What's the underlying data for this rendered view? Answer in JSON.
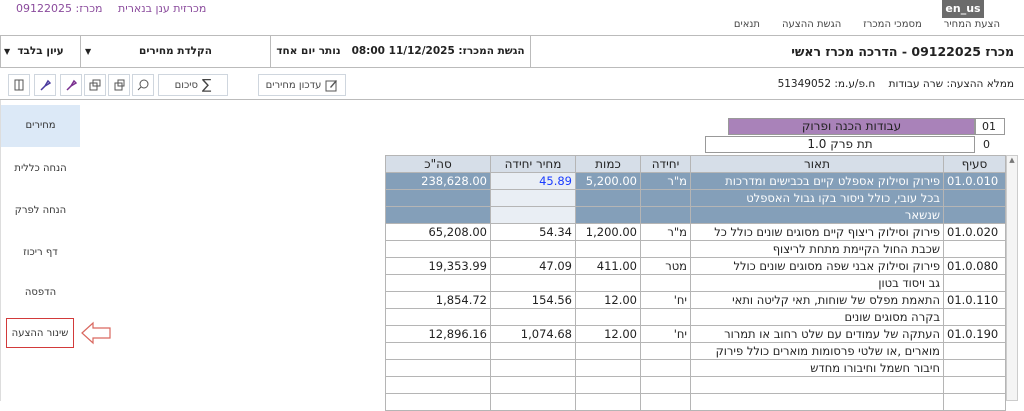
{
  "top_bar": {
    "app_name": "מכרזית ענן בנארית",
    "tender_label": "מכרז: 09122025",
    "language": "en_us"
  },
  "tabs": [
    "הצעת המחיר",
    "מסמכי המכרז",
    "הגשת ההצעה",
    "תנאים"
  ],
  "header": {
    "title": "מכרז 09122025 - הדרכה מכרז ראשי",
    "deadline": "הגשת המכרז: 11/12/2025 08:00",
    "remaining": "נותר יום אחד",
    "mode": "הקלדת מחירים",
    "view": "עיון בלבד"
  },
  "toolbar": {
    "filler": "ממלא ההצעה: שרה עבודות",
    "company_id": "ח.פ/ע.מ: 51349052",
    "update_prices": "עדכון מחירים",
    "summary": "סיכום"
  },
  "sidebar": [
    "מחירים",
    "הנחה כללית",
    "הנחה לפרק",
    "דף ריכוז",
    "הדפסה",
    "שינור ההצעה"
  ],
  "chapter": {
    "number": "01",
    "name": "עבודות הכנה ופרוק"
  },
  "sub_chapter": {
    "number": "0",
    "name": "תת פרק 1.0"
  },
  "table": {
    "columns": [
      "סעיף",
      "תאור",
      "יחידה",
      "כמות",
      "מחיר יחידה",
      "סה\"כ"
    ],
    "rows": [
      {
        "item": "01.0.010",
        "description": [
          "פירוק וסילוק אספלט קיים בכבישים ומדרכות",
          "בכל עובי, כולל ניסור בקו גבול האספלט",
          "שנשאר"
        ],
        "unit": "מ\"ר",
        "quantity": "5,200.00",
        "unit_price": "45.89",
        "total": "238,628.00"
      },
      {
        "item": "01.0.020",
        "description": [
          "פירוק וסילוק ריצוף קיים מסוגים שונים כולל כל",
          "שכבת החול הקיימת מתחת לריצוף"
        ],
        "unit": "מ\"ר",
        "quantity": "1,200.00",
        "unit_price": "54.34",
        "total": "65,208.00"
      },
      {
        "item": "01.0.080",
        "description": [
          "פירוק וסילוק אבני שפה מסוגים שונים כולל",
          "גב ויסוד בטון"
        ],
        "unit": "מטר",
        "quantity": "411.00",
        "unit_price": "47.09",
        "total": "19,353.99"
      },
      {
        "item": "01.0.110",
        "description": [
          "התאמת מפלס של שוחות, תאי קליטה ותאי",
          "בקרה מסוגים שונים"
        ],
        "unit": "יח'",
        "quantity": "12.00",
        "unit_price": "154.56",
        "total": "1,854.72"
      },
      {
        "item": "01.0.190",
        "description": [
          "העתקה של עמודים עם שלט רחוב או תמרור",
          "מוארים ,או שלטי פרסומות מוארים כולל פירוק",
          "חיבור חשמל וחיבורו מחדש"
        ],
        "unit": "יח'",
        "quantity": "12.00",
        "unit_price": "1,074.68",
        "total": "12,896.16"
      }
    ]
  }
}
